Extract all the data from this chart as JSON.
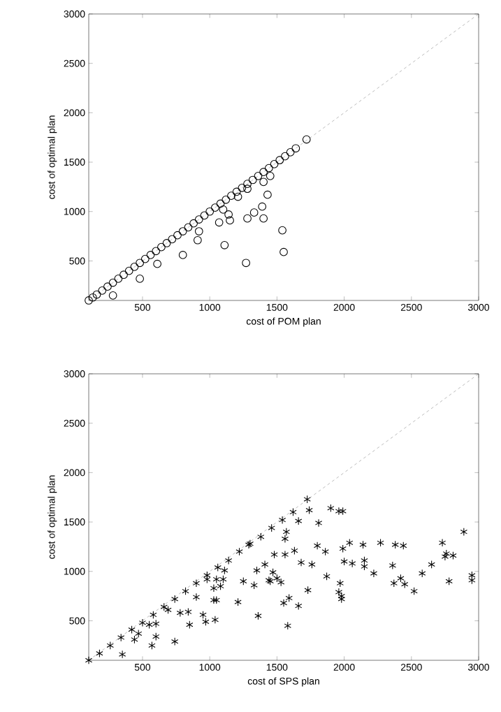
{
  "chart_data": [
    {
      "type": "scatter",
      "xlabel": "cost of POM plan",
      "ylabel": "cost of optimal plan",
      "xlim": [
        100,
        3000
      ],
      "ylim": [
        100,
        3000
      ],
      "xticks": [
        500,
        1000,
        1500,
        2000,
        2500,
        3000
      ],
      "yticks": [
        500,
        1000,
        1500,
        2000,
        2500,
        3000
      ],
      "marker": "circle",
      "series": [
        {
          "type": "line",
          "color": "#555555",
          "x": [
            100,
            3000
          ],
          "values": [
            100,
            3000
          ],
          "line_style": "dashed",
          "marker": "none"
        },
        {
          "color": "#000000",
          "x": [
            100,
            130,
            160,
            200,
            240,
            280,
            320,
            360,
            400,
            440,
            480,
            520,
            560,
            600,
            640,
            680,
            720,
            760,
            800,
            840,
            880,
            920,
            960,
            1000,
            1040,
            1080,
            1120,
            1160,
            1200,
            1240,
            1280,
            1320,
            1360,
            1400,
            1440,
            1480,
            1520,
            1560,
            1600,
            1640,
            1720,
            280,
            480,
            610,
            800,
            920,
            910,
            1070,
            1100,
            1110,
            1140,
            1150,
            1210,
            1270,
            1280,
            1280,
            1330,
            1390,
            1400,
            1400,
            1430,
            1450,
            1540,
            1550
          ],
          "values": [
            100,
            130,
            160,
            200,
            240,
            280,
            320,
            360,
            400,
            440,
            480,
            520,
            560,
            600,
            640,
            680,
            720,
            760,
            800,
            840,
            880,
            920,
            960,
            1000,
            1040,
            1080,
            1120,
            1160,
            1200,
            1240,
            1280,
            1320,
            1360,
            1400,
            1440,
            1480,
            1520,
            1560,
            1600,
            1640,
            1730,
            150,
            320,
            470,
            560,
            800,
            710,
            890,
            1020,
            660,
            970,
            910,
            1150,
            480,
            930,
            1230,
            990,
            1050,
            930,
            1300,
            1170,
            1360,
            810,
            590
          ]
        }
      ]
    },
    {
      "type": "scatter",
      "xlabel": "cost of SPS plan",
      "ylabel": "cost of optimal plan",
      "xlim": [
        100,
        3000
      ],
      "ylim": [
        100,
        3000
      ],
      "xticks": [
        500,
        1000,
        1500,
        2000,
        2500,
        3000
      ],
      "yticks": [
        500,
        1000,
        1500,
        2000,
        2500,
        3000
      ],
      "marker": "cross",
      "series": [
        {
          "type": "line",
          "color": "#555555",
          "x": [
            100,
            3000
          ],
          "values": [
            100,
            3000
          ],
          "line_style": "dashed",
          "marker": "none"
        },
        {
          "color": "#000000",
          "x": [
            100,
            180,
            260,
            340,
            420,
            500,
            580,
            660,
            740,
            820,
            900,
            980,
            1060,
            1140,
            1220,
            1300,
            1380,
            1460,
            1540,
            1620,
            1725,
            350,
            440,
            470,
            570,
            600,
            600,
            550,
            690,
            740,
            780,
            840,
            850,
            900,
            950,
            970,
            1040,
            1030,
            1050,
            1030,
            1080,
            1100,
            1110,
            1050,
            980,
            1210,
            1250,
            1330,
            1350,
            1360,
            1410,
            1450,
            1470,
            1480,
            1500,
            1290,
            1660,
            1810,
            1570,
            1560,
            1560,
            1630,
            1440,
            1530,
            1590,
            1550,
            1660,
            1580,
            1680,
            1760,
            1800,
            1860,
            1870,
            1730,
            1970,
            1960,
            1980,
            1980,
            1990,
            2040,
            2000,
            2060,
            2140,
            2150,
            2150,
            2220,
            2270,
            2360,
            2380,
            2440,
            2370,
            2420,
            2450,
            2520,
            2580,
            2650,
            2730,
            2750,
            2760,
            2810,
            2780,
            2890,
            2950,
            2950,
            1740,
            1900,
            1960,
            1990
          ],
          "values": [
            100,
            170,
            250,
            330,
            410,
            480,
            560,
            640,
            720,
            800,
            880,
            960,
            1040,
            1110,
            1200,
            1280,
            1350,
            1440,
            1520,
            1600,
            1730,
            160,
            310,
            370,
            250,
            340,
            470,
            460,
            610,
            290,
            580,
            590,
            460,
            740,
            560,
            490,
            510,
            710,
            710,
            830,
            850,
            920,
            1010,
            920,
            920,
            690,
            900,
            860,
            1010,
            550,
            1070,
            900,
            990,
            1170,
            930,
            1270,
            1510,
            1490,
            1400,
            1330,
            1170,
            1210,
            910,
            890,
            730,
            680,
            650,
            450,
            1090,
            1070,
            1260,
            1200,
            950,
            810,
            880,
            790,
            750,
            720,
            1230,
            1290,
            1100,
            1080,
            1270,
            1110,
            1050,
            980,
            1290,
            1060,
            1270,
            1260,
            880,
            930,
            870,
            800,
            980,
            1070,
            1290,
            1150,
            1180,
            1160,
            900,
            1400,
            960,
            910,
            1620,
            1640,
            1610,
            1610
          ]
        }
      ]
    }
  ]
}
